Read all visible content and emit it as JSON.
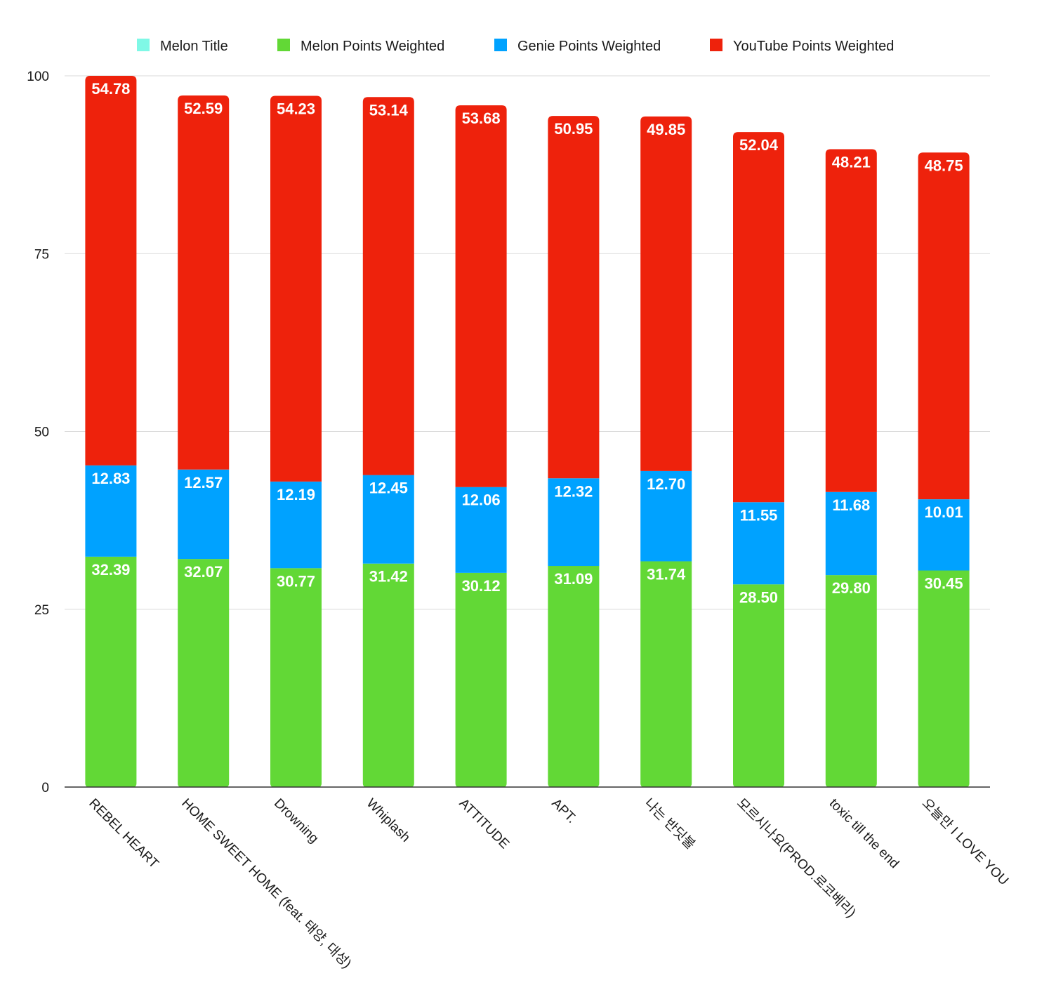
{
  "chart_data": {
    "type": "bar",
    "stacked": true,
    "title": "",
    "xlabel": "",
    "ylabel": "",
    "ylim": [
      0,
      100
    ],
    "yticks": [
      0,
      25,
      50,
      75,
      100
    ],
    "grid": true,
    "legend_position": "top",
    "legend": [
      {
        "name": "Melon Title",
        "color": "#7ff8e6"
      },
      {
        "name": "Melon Points Weighted",
        "color": "#62d836"
      },
      {
        "name": "Genie Points Weighted",
        "color": "#00a2ff"
      },
      {
        "name": "YouTube Points Weighted",
        "color": "#ee220c"
      }
    ],
    "categories": [
      "REBEL HEART",
      "HOME SWEET HOME (feat. 태양, 대성)",
      "Drowning",
      "Whiplash",
      "ATTITUDE",
      "APT.",
      "나는 반딧불",
      "모르시나요(PROD.로코베리)",
      "toxic till the end",
      "오늘만 I LOVE YOU"
    ],
    "series": [
      {
        "name": "Melon Points Weighted",
        "color": "#62d836",
        "values": [
          32.39,
          32.07,
          30.77,
          31.42,
          30.12,
          31.09,
          31.74,
          28.5,
          29.8,
          30.45
        ],
        "labels": [
          "32.39",
          "32.07",
          "30.77",
          "31.42",
          "30.12",
          "31.09",
          "31.74",
          "28.50",
          "29.80",
          "30.45"
        ]
      },
      {
        "name": "Genie Points Weighted",
        "color": "#00a2ff",
        "values": [
          12.83,
          12.57,
          12.19,
          12.45,
          12.06,
          12.32,
          12.7,
          11.55,
          11.68,
          10.01
        ],
        "labels": [
          "12.83",
          "12.57",
          "12.19",
          "12.45",
          "12.06",
          "12.32",
          "12.70",
          "11.55",
          "11.68",
          "10.01"
        ]
      },
      {
        "name": "YouTube Points Weighted",
        "color": "#ee220c",
        "values": [
          54.78,
          52.59,
          54.23,
          53.14,
          53.68,
          50.95,
          49.85,
          52.04,
          48.21,
          48.75
        ],
        "labels": [
          "54.78",
          "52.59",
          "54.23",
          "53.14",
          "53.68",
          "50.95",
          "49.85",
          "52.04",
          "48.21",
          "48.75"
        ]
      }
    ]
  }
}
